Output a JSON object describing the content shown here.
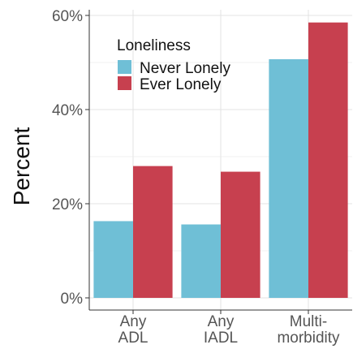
{
  "chart_data": {
    "type": "bar",
    "categories": [
      [
        "Any",
        "ADL"
      ],
      [
        "Any",
        "IADL"
      ],
      [
        "Multi-",
        "morbidity"
      ]
    ],
    "series": [
      {
        "name": "Never Lonely",
        "color": "#6fbfd6",
        "values": [
          16.3,
          15.6,
          50.7
        ]
      },
      {
        "name": "Ever Lonely",
        "color": "#c7404f",
        "values": [
          28.0,
          26.8,
          58.5
        ]
      }
    ],
    "ylabel": "Percent",
    "ylim": [
      0,
      60
    ],
    "yticks": [
      0,
      20,
      40,
      60
    ],
    "ytick_labels": [
      "0%",
      "20%",
      "40%",
      "60%"
    ],
    "legend": {
      "title": "Loneliness",
      "position": "top-left"
    },
    "grid": true
  }
}
